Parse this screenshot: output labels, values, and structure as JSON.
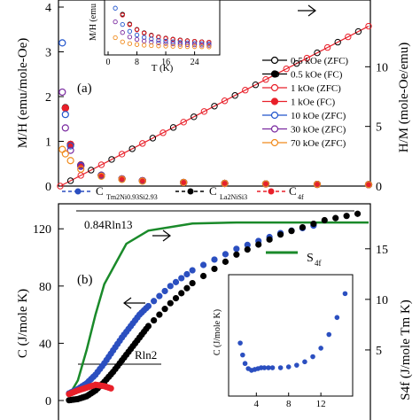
{
  "chart_data": [
    {
      "panel": "(a)",
      "type": "scatter",
      "ylabel_left": "M/H (emu/mole-Oe)",
      "ylabel_right": "H/M (mole-Oe/emu)",
      "ylim_left": [
        0,
        4
      ],
      "ylim_right": [
        0,
        15
      ],
      "yticks_left": [
        "0",
        "1",
        "2",
        "3",
        "4"
      ],
      "yticks_right": [
        "0",
        "5",
        "10"
      ],
      "legend_placement": "right",
      "series": [
        {
          "name": "0.5 kOe (ZFC)",
          "color": "#000000",
          "marker": "open-circle",
          "x": [
            2,
            5,
            10,
            20,
            40,
            60,
            80,
            120,
            160,
            200,
            250,
            300
          ],
          "y": [
            4.6,
            1.75,
            0.93,
            0.47,
            0.24,
            0.16,
            0.12,
            0.08,
            0.06,
            0.048,
            0.038,
            0.032
          ]
        },
        {
          "name": "0.5 kOe (FC)",
          "color": "#000000",
          "marker": "filled-circle",
          "x": [
            2,
            5,
            10,
            20,
            40,
            60,
            80,
            120,
            160,
            200,
            250,
            300
          ],
          "y": [
            4.6,
            1.75,
            0.93,
            0.47,
            0.24,
            0.16,
            0.12,
            0.08,
            0.06,
            0.048,
            0.038,
            0.032
          ]
        },
        {
          "name": "1 kOe (ZFC)",
          "color": "#e8202a",
          "marker": "open-circle",
          "x": [
            2,
            5,
            10,
            20,
            40,
            60,
            80,
            120,
            160,
            200,
            250,
            300
          ],
          "y": [
            4.5,
            1.74,
            0.93,
            0.47,
            0.24,
            0.16,
            0.12,
            0.08,
            0.06,
            0.048,
            0.038,
            0.032
          ]
        },
        {
          "name": "1 kOe (FC)",
          "color": "#e8202a",
          "marker": "filled-circle",
          "x": [
            2,
            5,
            10,
            20,
            40,
            60,
            80,
            120,
            160,
            200,
            250,
            300
          ],
          "y": [
            4.5,
            1.74,
            0.93,
            0.47,
            0.24,
            0.16,
            0.12,
            0.08,
            0.06,
            0.048,
            0.038,
            0.032
          ]
        },
        {
          "name": "10 kOe (ZFC)",
          "color": "#2255cc",
          "marker": "open-circle",
          "x": [
            2,
            5,
            10,
            20,
            40,
            60,
            80,
            120,
            160,
            200,
            250,
            300
          ],
          "y": [
            3.2,
            1.6,
            0.9,
            0.46,
            0.24,
            0.16,
            0.12,
            0.08,
            0.06,
            0.048,
            0.038,
            0.032
          ]
        },
        {
          "name": "30 kOe (ZFC)",
          "color": "#7a2aa0",
          "marker": "open-circle",
          "x": [
            2,
            5,
            10,
            20,
            40,
            60,
            80,
            120,
            160,
            200,
            250,
            300
          ],
          "y": [
            2.1,
            1.3,
            0.8,
            0.44,
            0.23,
            0.16,
            0.12,
            0.08,
            0.06,
            0.048,
            0.038,
            0.032
          ]
        },
        {
          "name": "70 kOe (ZFC)",
          "color": "#f08a1c",
          "marker": "open-circle",
          "x": [
            2,
            5,
            10,
            20,
            40,
            60,
            80,
            120,
            160,
            200,
            250,
            300
          ],
          "y": [
            0.82,
            0.72,
            0.57,
            0.38,
            0.22,
            0.15,
            0.11,
            0.08,
            0.06,
            0.048,
            0.038,
            0.032
          ]
        }
      ],
      "inverse_series": {
        "label": "H/M",
        "x": [
          0,
          300
        ],
        "y": [
          0,
          13.4
        ]
      },
      "inset": {
        "type": "scatter",
        "xlabel": "T (K)",
        "ylabel": "M/H (emu",
        "xticks": [
          "0",
          "8",
          "16",
          "24"
        ],
        "xlim": [
          0,
          30
        ]
      }
    },
    {
      "panel": "(b)",
      "type": "scatter",
      "ylabel_left": "C (J/mole K)",
      "ylabel_right": "S4f (J/mole Tm K)",
      "yticks_left": [
        "0",
        "40",
        "80",
        "120"
      ],
      "yticks_right": [
        "5",
        "10",
        "15"
      ],
      "ylim_left": [
        0,
        135
      ],
      "ylim_right": [
        0,
        19.1
      ],
      "legend_placement": "top",
      "legend": [
        "C",
        "Tm2Ni0.93Si2.93",
        "C",
        "La2NiSi3",
        "C",
        "4f"
      ],
      "annotations": [
        "0.84Rln13",
        "Rln2"
      ],
      "s4f_label": "S",
      "s4f_sub": "4f",
      "series": [
        {
          "name": "C Tm2Ni0.93Si2.93",
          "color": "#2b4fc0",
          "marker": "filled-circle",
          "x": [
            2,
            4,
            6,
            8,
            10,
            12,
            14,
            16,
            18,
            20,
            25,
            30,
            40,
            50,
            60
          ],
          "y": [
            5,
            8,
            12,
            18,
            26,
            35,
            44,
            52,
            60,
            66,
            80,
            91,
            106,
            117,
            124
          ]
        },
        {
          "name": "C La2NiSi3",
          "color": "#000000",
          "marker": "filled-circle",
          "x": [
            2,
            4,
            6,
            8,
            10,
            12,
            14,
            16,
            18,
            20,
            25,
            30,
            40,
            50,
            60,
            70
          ],
          "y": [
            0.2,
            1,
            3,
            7,
            13,
            20,
            28,
            36,
            44,
            52,
            68,
            82,
            102,
            116,
            126,
            132
          ]
        },
        {
          "name": "C 4f",
          "color": "#e8202a",
          "marker": "filled-circle",
          "x": [
            2,
            4,
            6,
            8,
            10,
            12
          ],
          "y": [
            4.5,
            7,
            9,
            11,
            10,
            8
          ]
        }
      ],
      "s4f_series": {
        "x": [
          2,
          4,
          6,
          8,
          10,
          15,
          20,
          30,
          40,
          50,
          60,
          70
        ],
        "y": [
          0.5,
          2,
          5,
          8.5,
          11.5,
          15.5,
          16.8,
          17.5,
          17.6,
          17.6,
          17.6,
          17.6
        ]
      },
      "inset": {
        "type": "scatter",
        "ylabel": "C (J/mole K)",
        "xticks": [
          "4",
          "8",
          "12"
        ],
        "xlim": [
          1,
          15.5
        ],
        "ylim": [
          2.5,
          9
        ],
        "x": [
          2,
          2.3,
          2.6,
          3,
          3.4,
          3.8,
          4.2,
          4.6,
          5,
          5.5,
          6,
          7,
          8,
          9,
          10,
          11,
          12,
          13,
          14,
          15
        ],
        "y": [
          5.3,
          4.6,
          4.1,
          3.8,
          3.7,
          3.75,
          3.8,
          3.85,
          3.85,
          3.85,
          3.85,
          3.85,
          3.9,
          4.0,
          4.2,
          4.5,
          5.0,
          5.8,
          6.8,
          8.2
        ]
      }
    }
  ],
  "colors": {
    "axis": "#000000",
    "green": "#1a8a2a",
    "blue": "#2b4fc0",
    "red": "#e8202a",
    "orange": "#f08a1c",
    "purple": "#7a2aa0"
  }
}
